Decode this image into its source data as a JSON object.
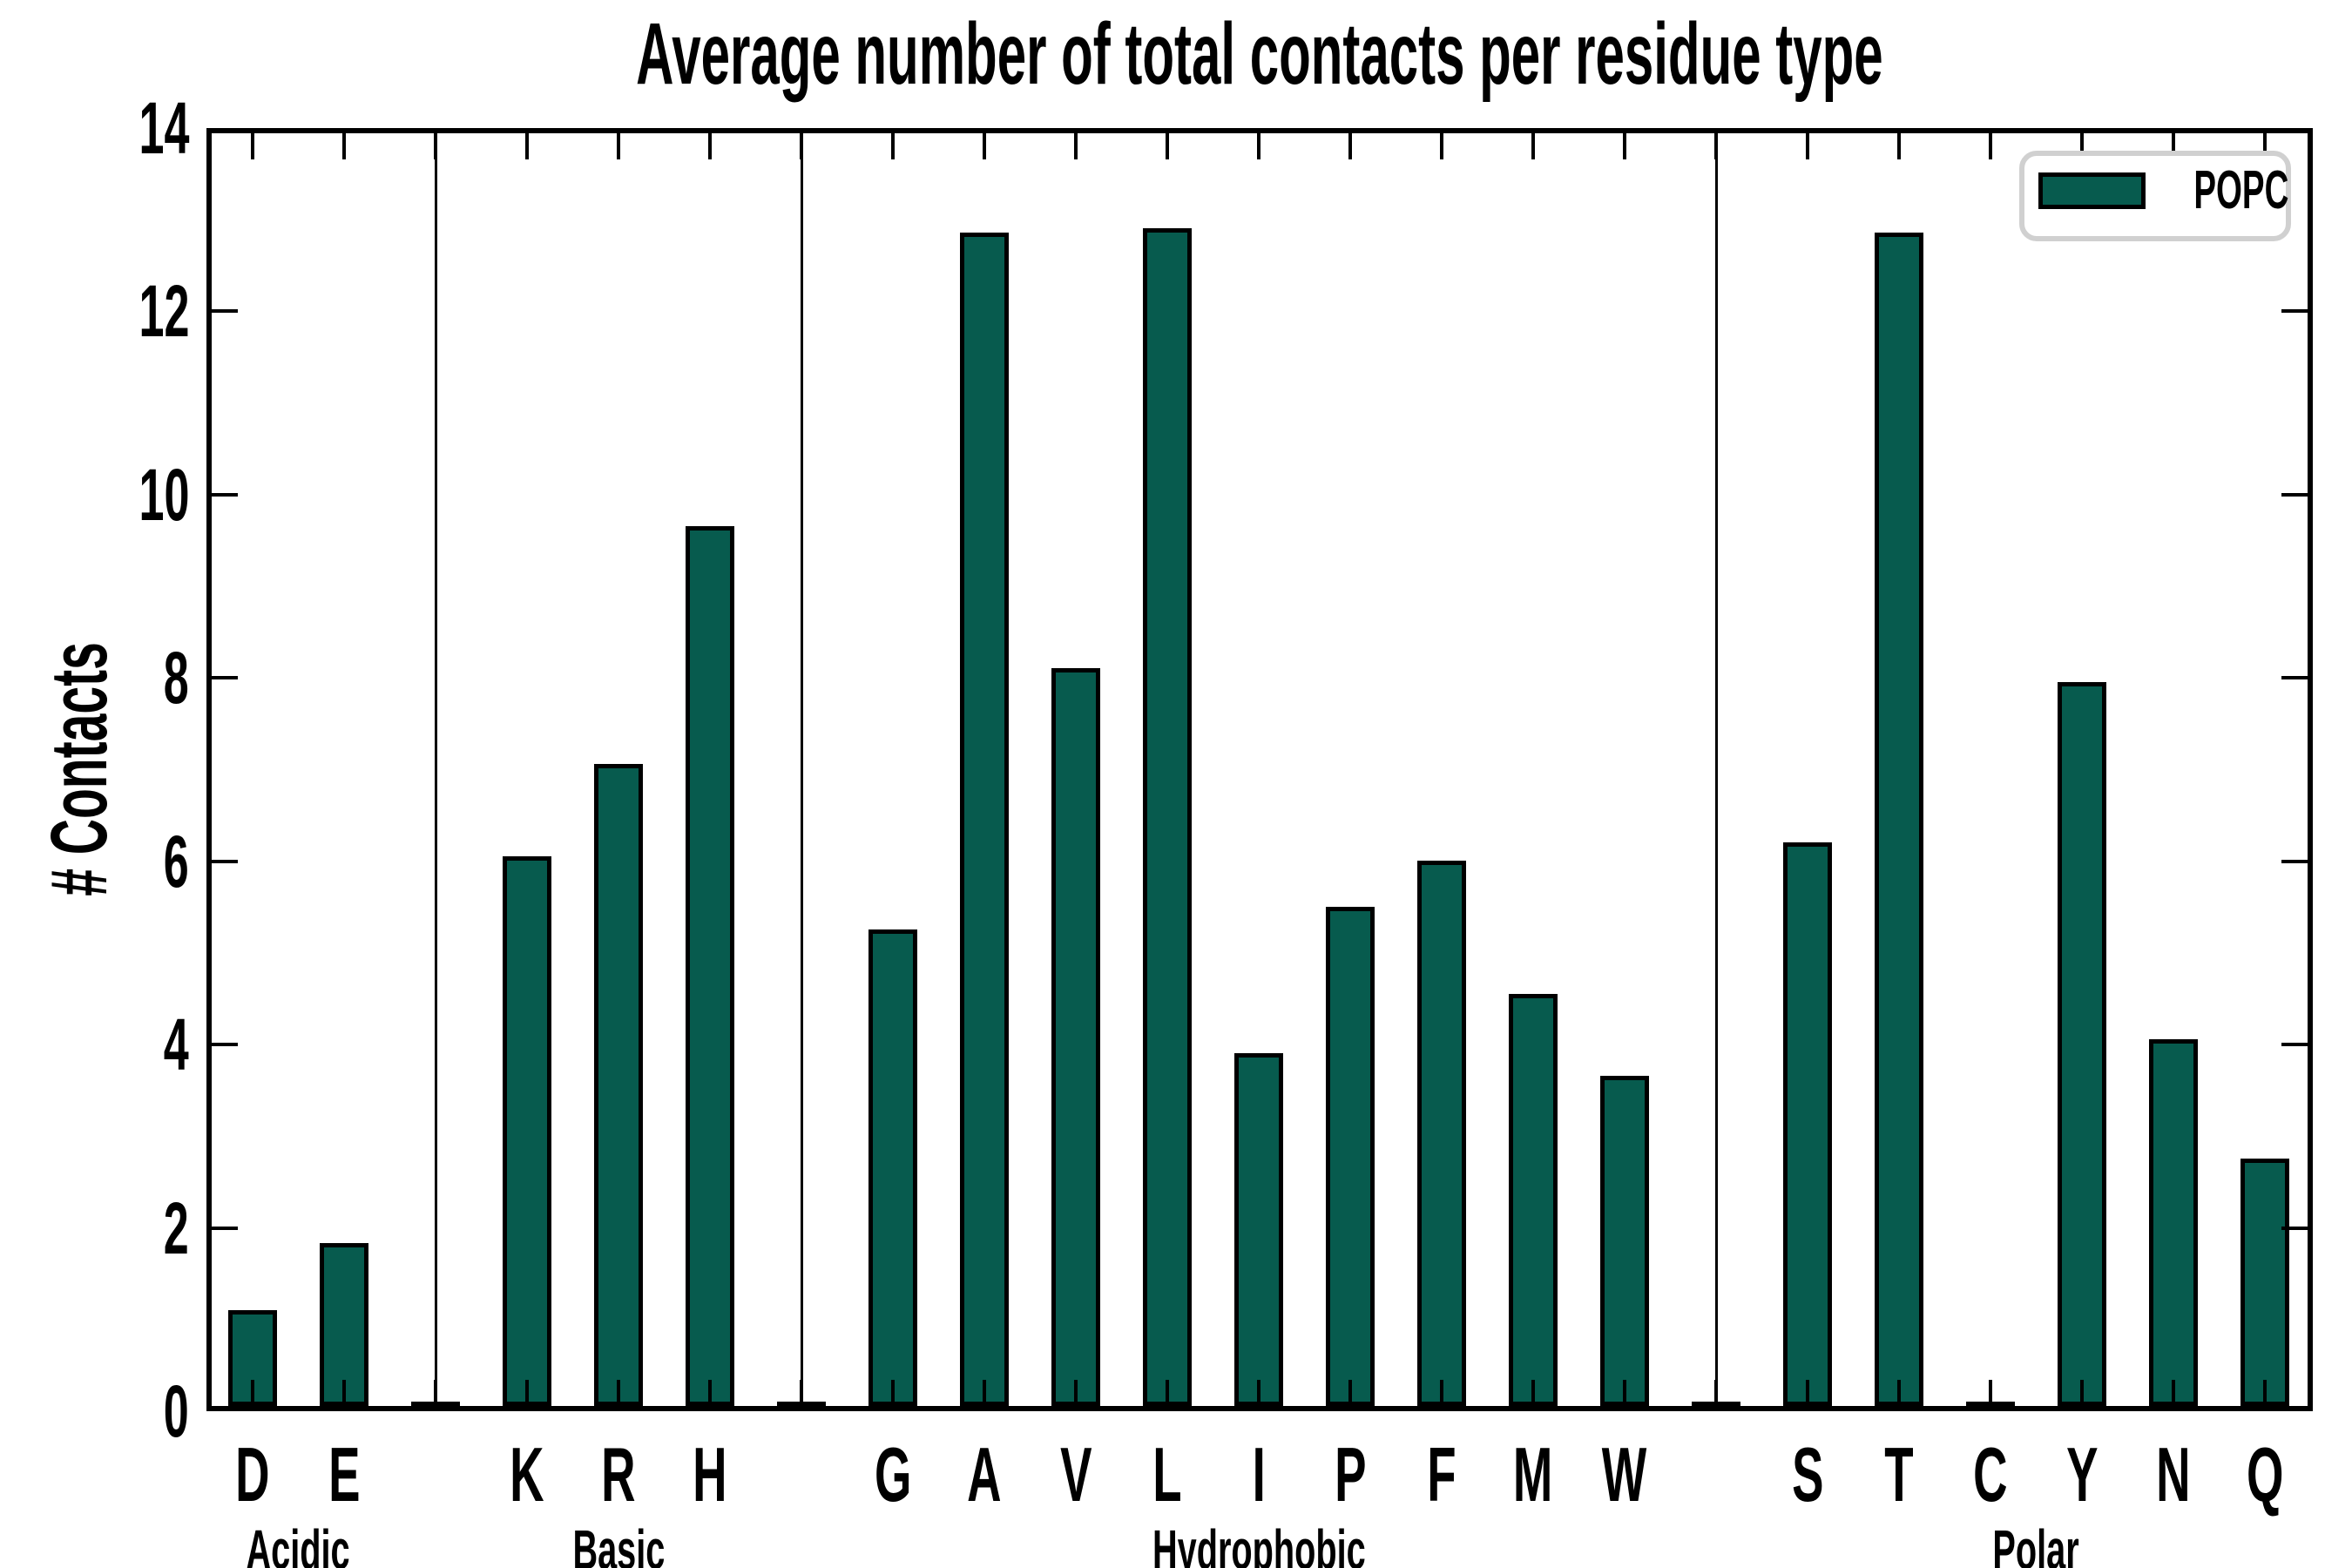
{
  "chart_data": {
    "type": "bar",
    "title": "Average number of total contacts per residue type",
    "xlabel": "",
    "ylabel": "# Contacts",
    "ylim": [
      0,
      14
    ],
    "yticks": [
      0,
      2,
      4,
      6,
      8,
      10,
      12,
      14
    ],
    "grid": false,
    "bar_color": "#075B4E",
    "bar_edge_color": "#000000",
    "legend": {
      "position": "upper right",
      "entries": [
        {
          "label": "POPC",
          "color": "#075B4E"
        }
      ]
    },
    "groups": [
      {
        "name": "Acidic",
        "categories": [
          "D",
          "E"
        ],
        "values": [
          1.05,
          1.78
        ]
      },
      {
        "name": "Basic",
        "categories": [
          "K",
          "R",
          "H"
        ],
        "values": [
          6.0,
          7.0,
          9.6
        ]
      },
      {
        "name": "Hydrophobic",
        "categories": [
          "G",
          "A",
          "V",
          "L",
          "I",
          "P",
          "F",
          "M",
          "W"
        ],
        "values": [
          5.2,
          12.8,
          8.05,
          12.85,
          3.85,
          5.45,
          5.95,
          4.5,
          3.6
        ]
      },
      {
        "name": "Polar",
        "categories": [
          "S",
          "T",
          "C",
          "Y",
          "N",
          "Q"
        ],
        "values": [
          6.15,
          12.8,
          0.0,
          7.9,
          4.0,
          2.7
        ]
      }
    ]
  }
}
